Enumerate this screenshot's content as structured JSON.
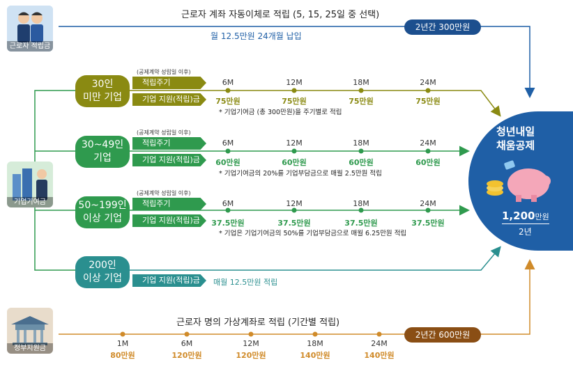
{
  "colors": {
    "blue": "#1f5fa6",
    "olive": "#8a8a12",
    "green": "#2f9a4e",
    "teal": "#2a8f8f",
    "orange": "#d08b2a",
    "brown": "#8a4e14",
    "navy": "#1c4f8e"
  },
  "top": {
    "source_label": "근로자 적립금",
    "title": "근로자 계좌 자동이체로 적립 (5, 15, 25일 중 선택)",
    "subtitle": "월 12.5만원 24개월 납입",
    "badge": "2년간 300만원"
  },
  "enterprise_source_label": "기업기여금",
  "government_source_label": "정부지원금",
  "tiers": [
    {
      "name": "30인\n미만 기업",
      "contract_note": "(공제계약 성립일 이후)",
      "band1": "적립주기",
      "band2": "기업 지원(적립)금",
      "months": [
        "6M",
        "12M",
        "18M",
        "24M"
      ],
      "amounts": [
        "75만원",
        "75만원",
        "75만원",
        "75만원"
      ],
      "note": "* 기업기여금 (총 300만원)을 주기별로 적립"
    },
    {
      "name": "30~49인\n기업",
      "contract_note": "(공제계약 성립일 이후)",
      "band1": "적립주기",
      "band2": "기업 지원(적립)금",
      "months": [
        "6M",
        "12M",
        "18M",
        "24M"
      ],
      "amounts": [
        "60만원",
        "60만원",
        "60만원",
        "60만원"
      ],
      "note": "* 기업기여금의 20%를 기업부담금으로 매월 2.5만원 적립"
    },
    {
      "name": "50~199인\n이상 기업",
      "contract_note": "(공제계약 성립일 이후)",
      "band1": "적립주기",
      "band2": "기업 지원(적립)금",
      "months": [
        "6M",
        "12M",
        "18M",
        "24M"
      ],
      "amounts": [
        "37.5만원",
        "37.5만원",
        "37.5만원",
        "37.5만원"
      ],
      "note": "* 기업은 기업기여금의 50%를 기업부담금으로 매월 6.25만원 적립"
    },
    {
      "name": "200인\n이상 기업",
      "band2": "기업 지원(적립)금",
      "monthly": "매월 12.5만원 적립"
    }
  ],
  "gov": {
    "title": "근로자 명의 가상계좌로 적립 (기간별 적립)",
    "badge": "2년간 600만원",
    "months": [
      "1M",
      "6M",
      "12M",
      "18M",
      "24M"
    ],
    "amounts": [
      "80만원",
      "120만원",
      "120만원",
      "140만원",
      "140만원"
    ]
  },
  "result": {
    "title1": "청년내일",
    "title2": "채움공제",
    "amount_num": "1,200",
    "amount_unit": "만원",
    "period": "2년"
  }
}
